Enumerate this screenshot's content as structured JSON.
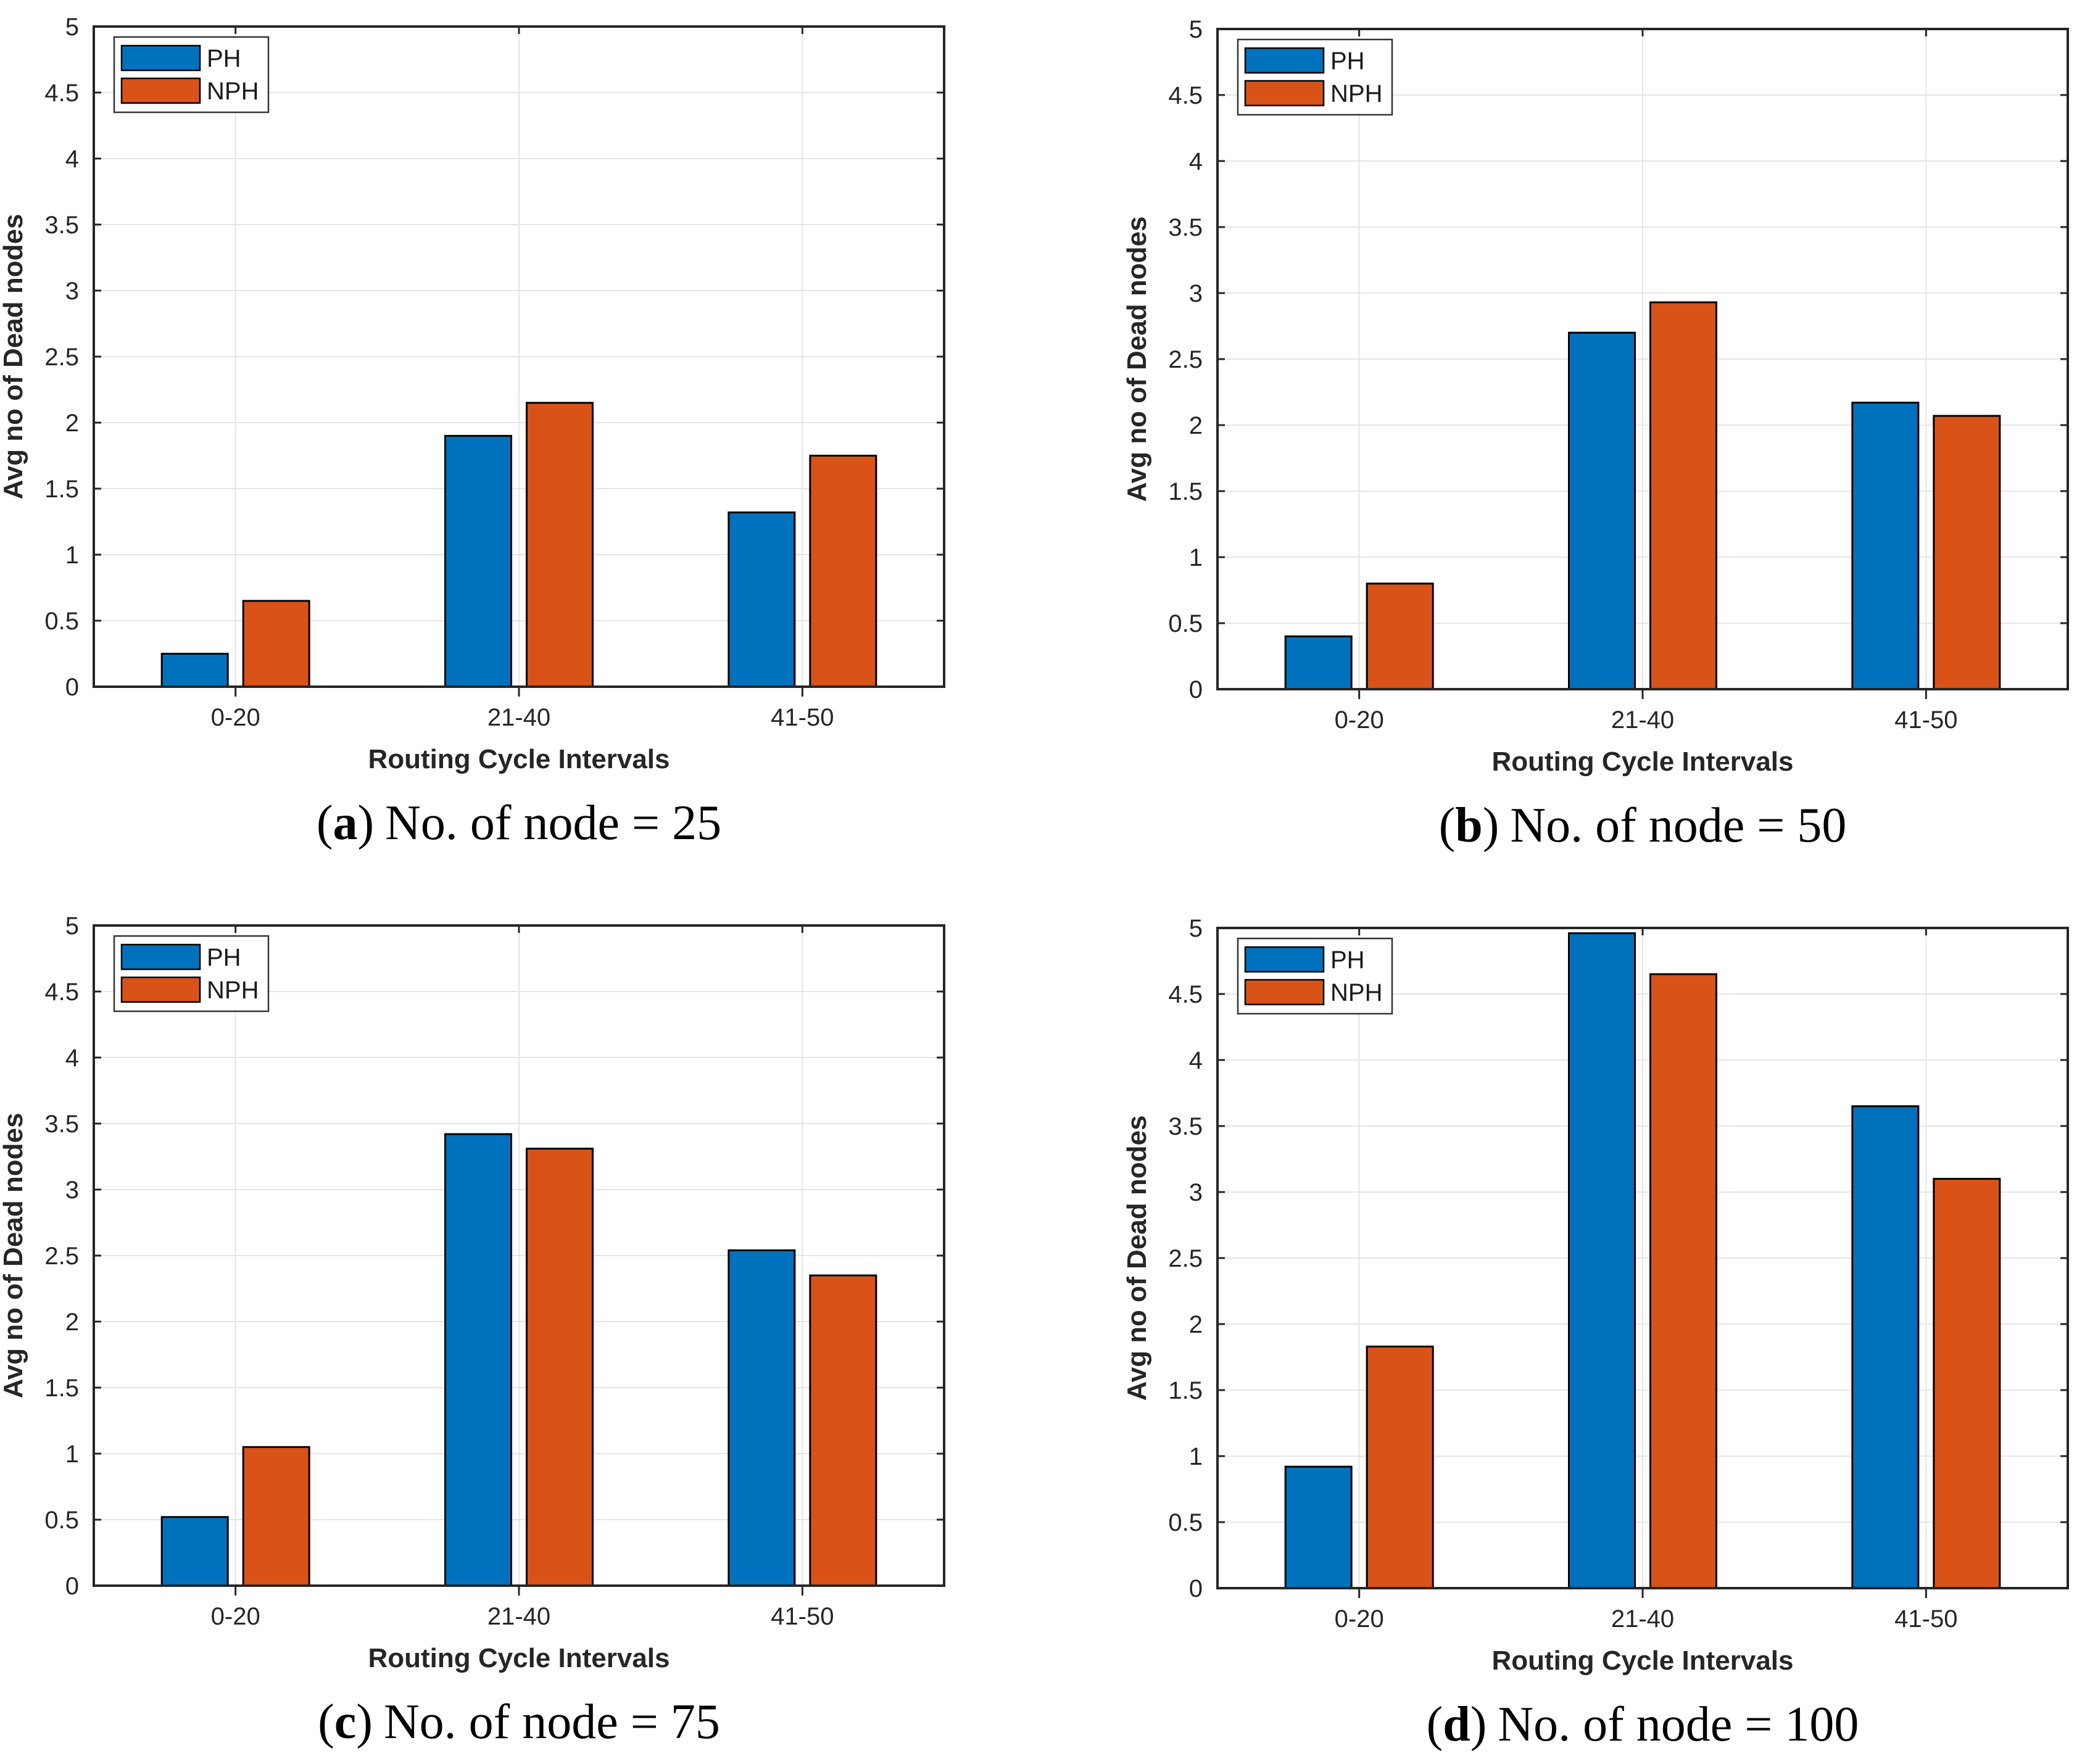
{
  "figure": {
    "colors": {
      "PH": "#0072BD",
      "NPH": "#D95319",
      "grid": "#E5E5E5",
      "axis": "#262626",
      "bar_edge": "#000000",
      "legend_border": "#333333",
      "background": "#FFFFFF"
    },
    "axis": {
      "xlabel": "Routing Cycle Intervals",
      "ylabel": "Avg no of Dead nodes",
      "ylim": [
        0,
        5
      ],
      "ytick_step": 0.5,
      "ytick_labels": [
        "0",
        "0.5",
        "1",
        "1.5",
        "2",
        "2.5",
        "3",
        "3.5",
        "4",
        "4.5",
        "5"
      ],
      "categories": [
        "0-20",
        "21-40",
        "41-50"
      ],
      "grid": "on"
    },
    "legend": {
      "entries": [
        "PH",
        "NPH"
      ],
      "position": "top-left"
    }
  },
  "caption_format": {
    "open": "(",
    "close": ")"
  },
  "chart_data": [
    {
      "id": "a",
      "type": "bar",
      "caption": {
        "letter": "a",
        "text": "No. of node = 25"
      },
      "categories": [
        "0-20",
        "21-40",
        "41-50"
      ],
      "xlabel": "Routing Cycle Intervals",
      "ylabel": "Avg no of Dead nodes",
      "ylim": [
        0,
        5
      ],
      "legend": [
        "PH",
        "NPH"
      ],
      "series": [
        {
          "name": "PH",
          "values": [
            0.25,
            1.9,
            1.32
          ]
        },
        {
          "name": "NPH",
          "values": [
            0.65,
            2.15,
            1.75
          ]
        }
      ]
    },
    {
      "id": "b",
      "type": "bar",
      "caption": {
        "letter": "b",
        "text": "No. of node = 50"
      },
      "categories": [
        "0-20",
        "21-40",
        "41-50"
      ],
      "xlabel": "Routing Cycle Intervals",
      "ylabel": "Avg no of Dead nodes",
      "ylim": [
        0,
        5
      ],
      "legend": [
        "PH",
        "NPH"
      ],
      "series": [
        {
          "name": "PH",
          "values": [
            0.4,
            2.7,
            2.17
          ]
        },
        {
          "name": "NPH",
          "values": [
            0.8,
            2.93,
            2.07
          ]
        }
      ]
    },
    {
      "id": "c",
      "type": "bar",
      "caption": {
        "letter": "c",
        "text": "No. of node = 75"
      },
      "categories": [
        "0-20",
        "21-40",
        "41-50"
      ],
      "xlabel": "Routing Cycle Intervals",
      "ylabel": "Avg no of Dead nodes",
      "ylim": [
        0,
        5
      ],
      "legend": [
        "PH",
        "NPH"
      ],
      "series": [
        {
          "name": "PH",
          "values": [
            0.52,
            3.42,
            2.54
          ]
        },
        {
          "name": "NPH",
          "values": [
            1.05,
            3.31,
            2.35
          ]
        }
      ]
    },
    {
      "id": "d",
      "type": "bar",
      "caption": {
        "letter": "d",
        "text": "No. of node = 100"
      },
      "categories": [
        "0-20",
        "21-40",
        "41-50"
      ],
      "xlabel": "Routing Cycle Intervals",
      "ylabel": "Avg no of Dead nodes",
      "ylim": [
        0,
        5
      ],
      "legend": [
        "PH",
        "NPH"
      ],
      "series": [
        {
          "name": "PH",
          "values": [
            0.92,
            4.96,
            3.65
          ]
        },
        {
          "name": "NPH",
          "values": [
            1.83,
            4.65,
            3.1
          ]
        }
      ]
    }
  ]
}
